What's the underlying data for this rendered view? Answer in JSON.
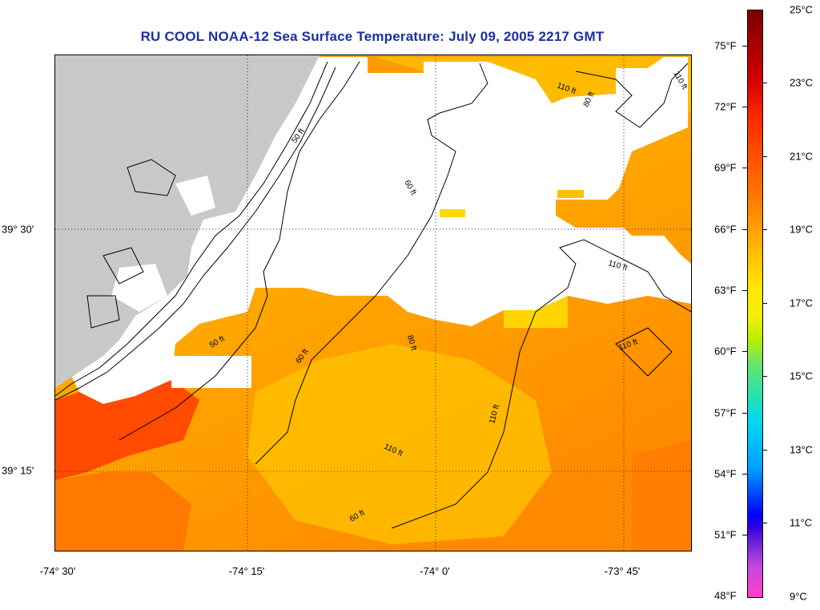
{
  "title": "RU COOL  NOAA-12  Sea Surface Temperature:  July 09, 2005 2217 GMT",
  "map": {
    "lon_labels": [
      "-74° 30'",
      "-74° 15'",
      "-74° 0'",
      "-73° 45'"
    ],
    "lat_labels": [
      "39° 30'",
      "39° 15'"
    ],
    "contour_labels": [
      "50 ft",
      "60 ft",
      "80 ft",
      "110 ft"
    ],
    "colors": {
      "land": "#c8c8c8",
      "cloud": "#ffffff",
      "warm_red": "#ff3c00",
      "orange": "#ff9600",
      "yellow_orange": "#ffc800"
    }
  },
  "colorbar": {
    "fahrenheit": [
      "75°F",
      "72°F",
      "69°F",
      "66°F",
      "63°F",
      "60°F",
      "57°F",
      "54°F",
      "51°F",
      "48°F"
    ],
    "celsius": [
      "25°C",
      "23°C",
      "21°C",
      "19°C",
      "17°C",
      "15°C",
      "13°C",
      "11°C",
      "9°C"
    ]
  }
}
